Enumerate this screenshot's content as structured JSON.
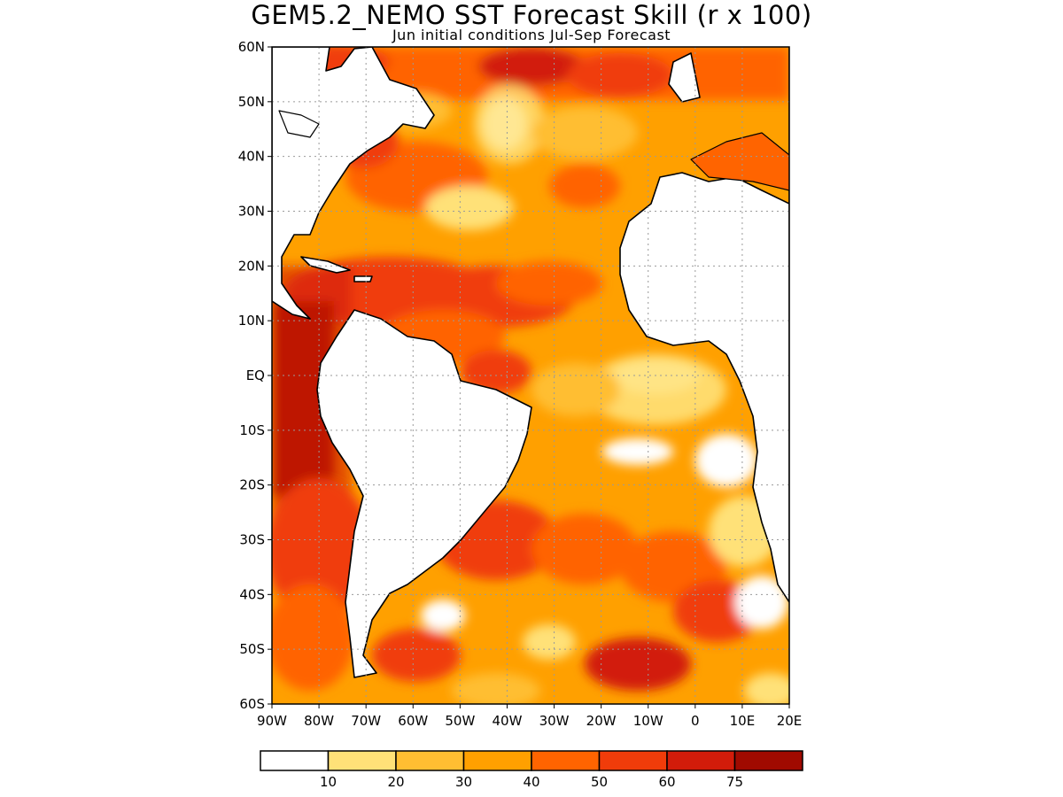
{
  "title": "GEM5.2_NEMO SST Forecast Skill (r x 100)",
  "subtitle": "Jun initial conditions  Jul-Sep Forecast",
  "lat_labels": [
    "60N",
    "50N",
    "40N",
    "30N",
    "20N",
    "10N",
    "EQ",
    "10S",
    "20S",
    "30S",
    "40S",
    "50S",
    "60S"
  ],
  "lon_labels": [
    "90W",
    "80W",
    "70W",
    "60W",
    "50W",
    "40W",
    "30W",
    "20W",
    "10W",
    "0",
    "10E",
    "20E"
  ],
  "colorbar": {
    "labels": [
      "10",
      "20",
      "30",
      "40",
      "50",
      "60",
      "75"
    ],
    "colors": [
      "#ffffff",
      "#ffe178",
      "#ffbe32",
      "#ffa000",
      "#ff6400",
      "#f03c0a",
      "#d21c0a",
      "#a00a00"
    ]
  },
  "map": {
    "lat_range": [
      -60,
      60
    ],
    "lon_range": [
      -90,
      20
    ],
    "land_color": "#ffffff",
    "coast_color": "#000000",
    "grid": "dotted"
  }
}
